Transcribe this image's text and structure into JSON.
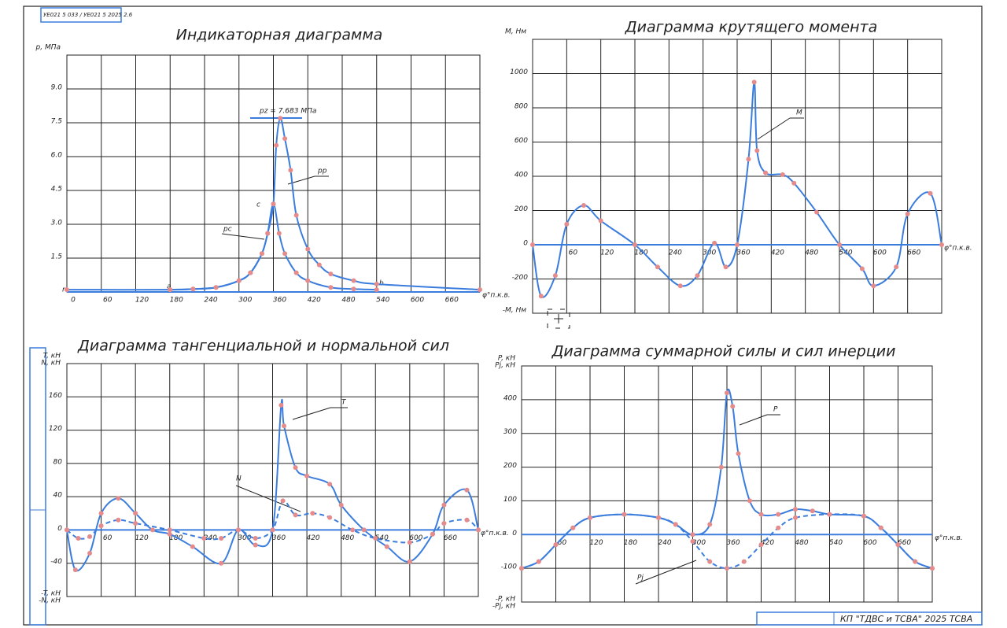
{
  "stamp": "УЕ021 5 033 / УЕ021 5 2025 2.6",
  "title_block": "КП \"ТДВС и ТСВА\" 2025 ТСВА",
  "chart_data": [
    {
      "type": "line",
      "title": "Индикаторная диаграмма",
      "y_label": "p, МПа",
      "x_label": "φ°п.к.в.",
      "xlim": [
        0,
        720
      ],
      "ylim": [
        0,
        10.5
      ],
      "xticks": [
        0,
        60,
        120,
        180,
        240,
        300,
        360,
        420,
        480,
        540,
        600,
        660
      ],
      "yticks": [
        1.5,
        {
          "value": 3,
          "label": "3.0"
        },
        4.5,
        {
          "value": 6,
          "label": "6.0"
        },
        7.5,
        {
          "value": 9,
          "label": "9.0"
        }
      ],
      "grid": true,
      "annotations": [
        "pz = 7.683 МПа",
        "pр",
        "pс",
        "c",
        "a",
        "b",
        "r"
      ],
      "series": [
        {
          "color": "#3b7ddd",
          "dash": false,
          "x": [
            0,
            180,
            220,
            260,
            300,
            320,
            340,
            350,
            360,
            365,
            372,
            380,
            390,
            400,
            420,
            440,
            460,
            500,
            540,
            720
          ],
          "values": [
            0.1,
            0.1,
            0.13,
            0.2,
            0.5,
            0.85,
            1.7,
            2.6,
            3.9,
            6.5,
            7.7,
            6.8,
            5.4,
            3.4,
            1.9,
            1.2,
            0.8,
            0.5,
            0.35,
            0.1
          ]
        },
        {
          "color": "#3b7ddd",
          "dash": false,
          "x": [
            180,
            220,
            260,
            300,
            320,
            340,
            350,
            360,
            370,
            380,
            400,
            420,
            460,
            500,
            540
          ],
          "values": [
            0.1,
            0.13,
            0.2,
            0.5,
            0.85,
            1.7,
            2.6,
            3.9,
            2.6,
            1.7,
            0.85,
            0.5,
            0.2,
            0.13,
            0.1
          ]
        }
      ]
    },
    {
      "type": "line",
      "title": "Диаграмма крутящего момента",
      "y_label": "M, Нм",
      "y_label_neg": "-M, Нм",
      "x_label": "φ°п.к.в.",
      "xlim": [
        0,
        720
      ],
      "ylim": [
        -400,
        1200
      ],
      "xticks": [
        60,
        120,
        180,
        240,
        300,
        360,
        420,
        480,
        540,
        600,
        660
      ],
      "yticks": [
        -200,
        0,
        200,
        400,
        600,
        800,
        1000
      ],
      "grid": true,
      "annotations": [
        "M"
      ],
      "series": [
        {
          "color": "#3b7ddd",
          "dash": false,
          "x": [
            0,
            15,
            40,
            60,
            90,
            120,
            180,
            220,
            260,
            290,
            320,
            340,
            360,
            380,
            390,
            395,
            410,
            440,
            460,
            500,
            540,
            580,
            600,
            640,
            660,
            700,
            720
          ],
          "values": [
            0,
            -300,
            -180,
            120,
            230,
            140,
            0,
            -130,
            -240,
            -180,
            10,
            -130,
            0,
            500,
            950,
            550,
            420,
            410,
            360,
            190,
            0,
            -140,
            -240,
            -130,
            180,
            300,
            0
          ]
        }
      ]
    },
    {
      "type": "line",
      "title": "Диаграмма тангенциальной и нормальной сил",
      "y_label": "T, кН",
      "y_label2": "N, кН",
      "y_label_neg": "-T, кН",
      "y_label_neg2": "-N, кН",
      "x_label": "φ°п.к.в.",
      "xlim": [
        0,
        720
      ],
      "ylim": [
        -80,
        200
      ],
      "xticks": [
        60,
        120,
        180,
        240,
        300,
        360,
        420,
        480,
        540,
        600,
        660
      ],
      "yticks": [
        -40,
        0,
        40,
        80,
        120,
        160
      ],
      "grid": true,
      "annotations": [
        "T",
        "N"
      ],
      "series": [
        {
          "color": "#3b7ddd",
          "dash": false,
          "x": [
            0,
            15,
            40,
            60,
            90,
            120,
            150,
            180,
            220,
            270,
            300,
            330,
            360,
            375,
            380,
            400,
            420,
            460,
            480,
            520,
            560,
            600,
            640,
            660,
            700,
            720
          ],
          "values": [
            0,
            -48,
            -28,
            20,
            38,
            20,
            0,
            -5,
            -20,
            -40,
            0,
            -18,
            0,
            150,
            125,
            75,
            65,
            55,
            30,
            0,
            -20,
            -38,
            -5,
            30,
            48,
            0
          ]
        },
        {
          "color": "#3b7ddd",
          "dash": true,
          "x": [
            0,
            20,
            40,
            60,
            90,
            120,
            180,
            240,
            270,
            300,
            330,
            360,
            378,
            400,
            430,
            460,
            500,
            540,
            600,
            640,
            660,
            700,
            720
          ],
          "values": [
            0,
            -10,
            -8,
            5,
            12,
            8,
            0,
            -10,
            -10,
            0,
            -10,
            0,
            35,
            18,
            20,
            15,
            0,
            -10,
            -15,
            -5,
            8,
            12,
            0
          ]
        }
      ]
    },
    {
      "type": "line",
      "title": "Диаграмма суммарной силы и сил инерции",
      "y_label": "P, кН",
      "y_label2": "Pj, кН",
      "y_label_neg": "-P, кН",
      "y_label_neg2": "-Pj, кН",
      "x_label": "φ°п.к.в.",
      "xlim": [
        0,
        720
      ],
      "ylim": [
        -200,
        500
      ],
      "xticks": [
        60,
        120,
        180,
        240,
        300,
        360,
        420,
        480,
        540,
        600,
        660
      ],
      "yticks": [
        -100,
        0,
        100,
        200,
        300,
        400
      ],
      "grid": true,
      "annotations": [
        "P",
        "Pj"
      ],
      "series": [
        {
          "color": "#3b7ddd",
          "dash": false,
          "x": [
            0,
            30,
            60,
            90,
            120,
            180,
            240,
            270,
            300,
            330,
            350,
            360,
            370,
            380,
            400,
            420,
            450,
            480,
            510,
            540,
            600,
            630,
            660,
            690,
            720
          ],
          "values": [
            -100,
            -80,
            -30,
            20,
            50,
            60,
            50,
            30,
            0,
            30,
            200,
            420,
            380,
            240,
            100,
            60,
            60,
            75,
            70,
            60,
            55,
            20,
            -30,
            -80,
            -100
          ]
        },
        {
          "color": "#3b7ddd",
          "dash": true,
          "x": [
            0,
            30,
            60,
            90,
            120,
            180,
            240,
            270,
            300,
            330,
            360,
            390,
            420,
            450,
            480,
            540,
            600,
            630,
            660,
            690,
            720
          ],
          "values": [
            -100,
            -80,
            -30,
            20,
            50,
            60,
            50,
            30,
            -20,
            -80,
            -100,
            -80,
            -30,
            20,
            50,
            60,
            55,
            20,
            -30,
            -80,
            -100
          ]
        }
      ]
    }
  ]
}
